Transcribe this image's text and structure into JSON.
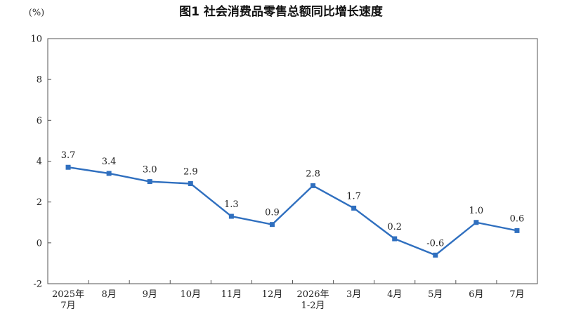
{
  "chart_data": {
    "type": "line",
    "title": "图1  社会消费品零售总额同比增长速度",
    "unit_label": "(%)",
    "xlabel": "",
    "ylabel": "",
    "categories": [
      [
        "2025年",
        "7月"
      ],
      [
        "8月"
      ],
      [
        "9月"
      ],
      [
        "10月"
      ],
      [
        "11月"
      ],
      [
        "12月"
      ],
      [
        "2026年",
        "1-2月"
      ],
      [
        "3月"
      ],
      [
        "4月"
      ],
      [
        "5月"
      ],
      [
        "6月"
      ],
      [
        "7月"
      ]
    ],
    "series": [
      {
        "values": [
          3.7,
          3.4,
          3.0,
          2.9,
          1.3,
          0.9,
          2.8,
          1.7,
          0.2,
          -0.6,
          1.0,
          0.6
        ],
        "labels": [
          "3.7",
          "3.4",
          "3.0",
          "2.9",
          "1.3",
          "0.9",
          "2.8",
          "1.7",
          "0.2",
          "-0.6",
          "1.0",
          "0.6"
        ],
        "color": "#2f6fbf"
      }
    ],
    "ylim": [
      -2,
      10
    ],
    "yticks": [
      -2,
      0,
      2,
      4,
      6,
      8,
      10
    ],
    "grid": false,
    "legend": "none"
  }
}
